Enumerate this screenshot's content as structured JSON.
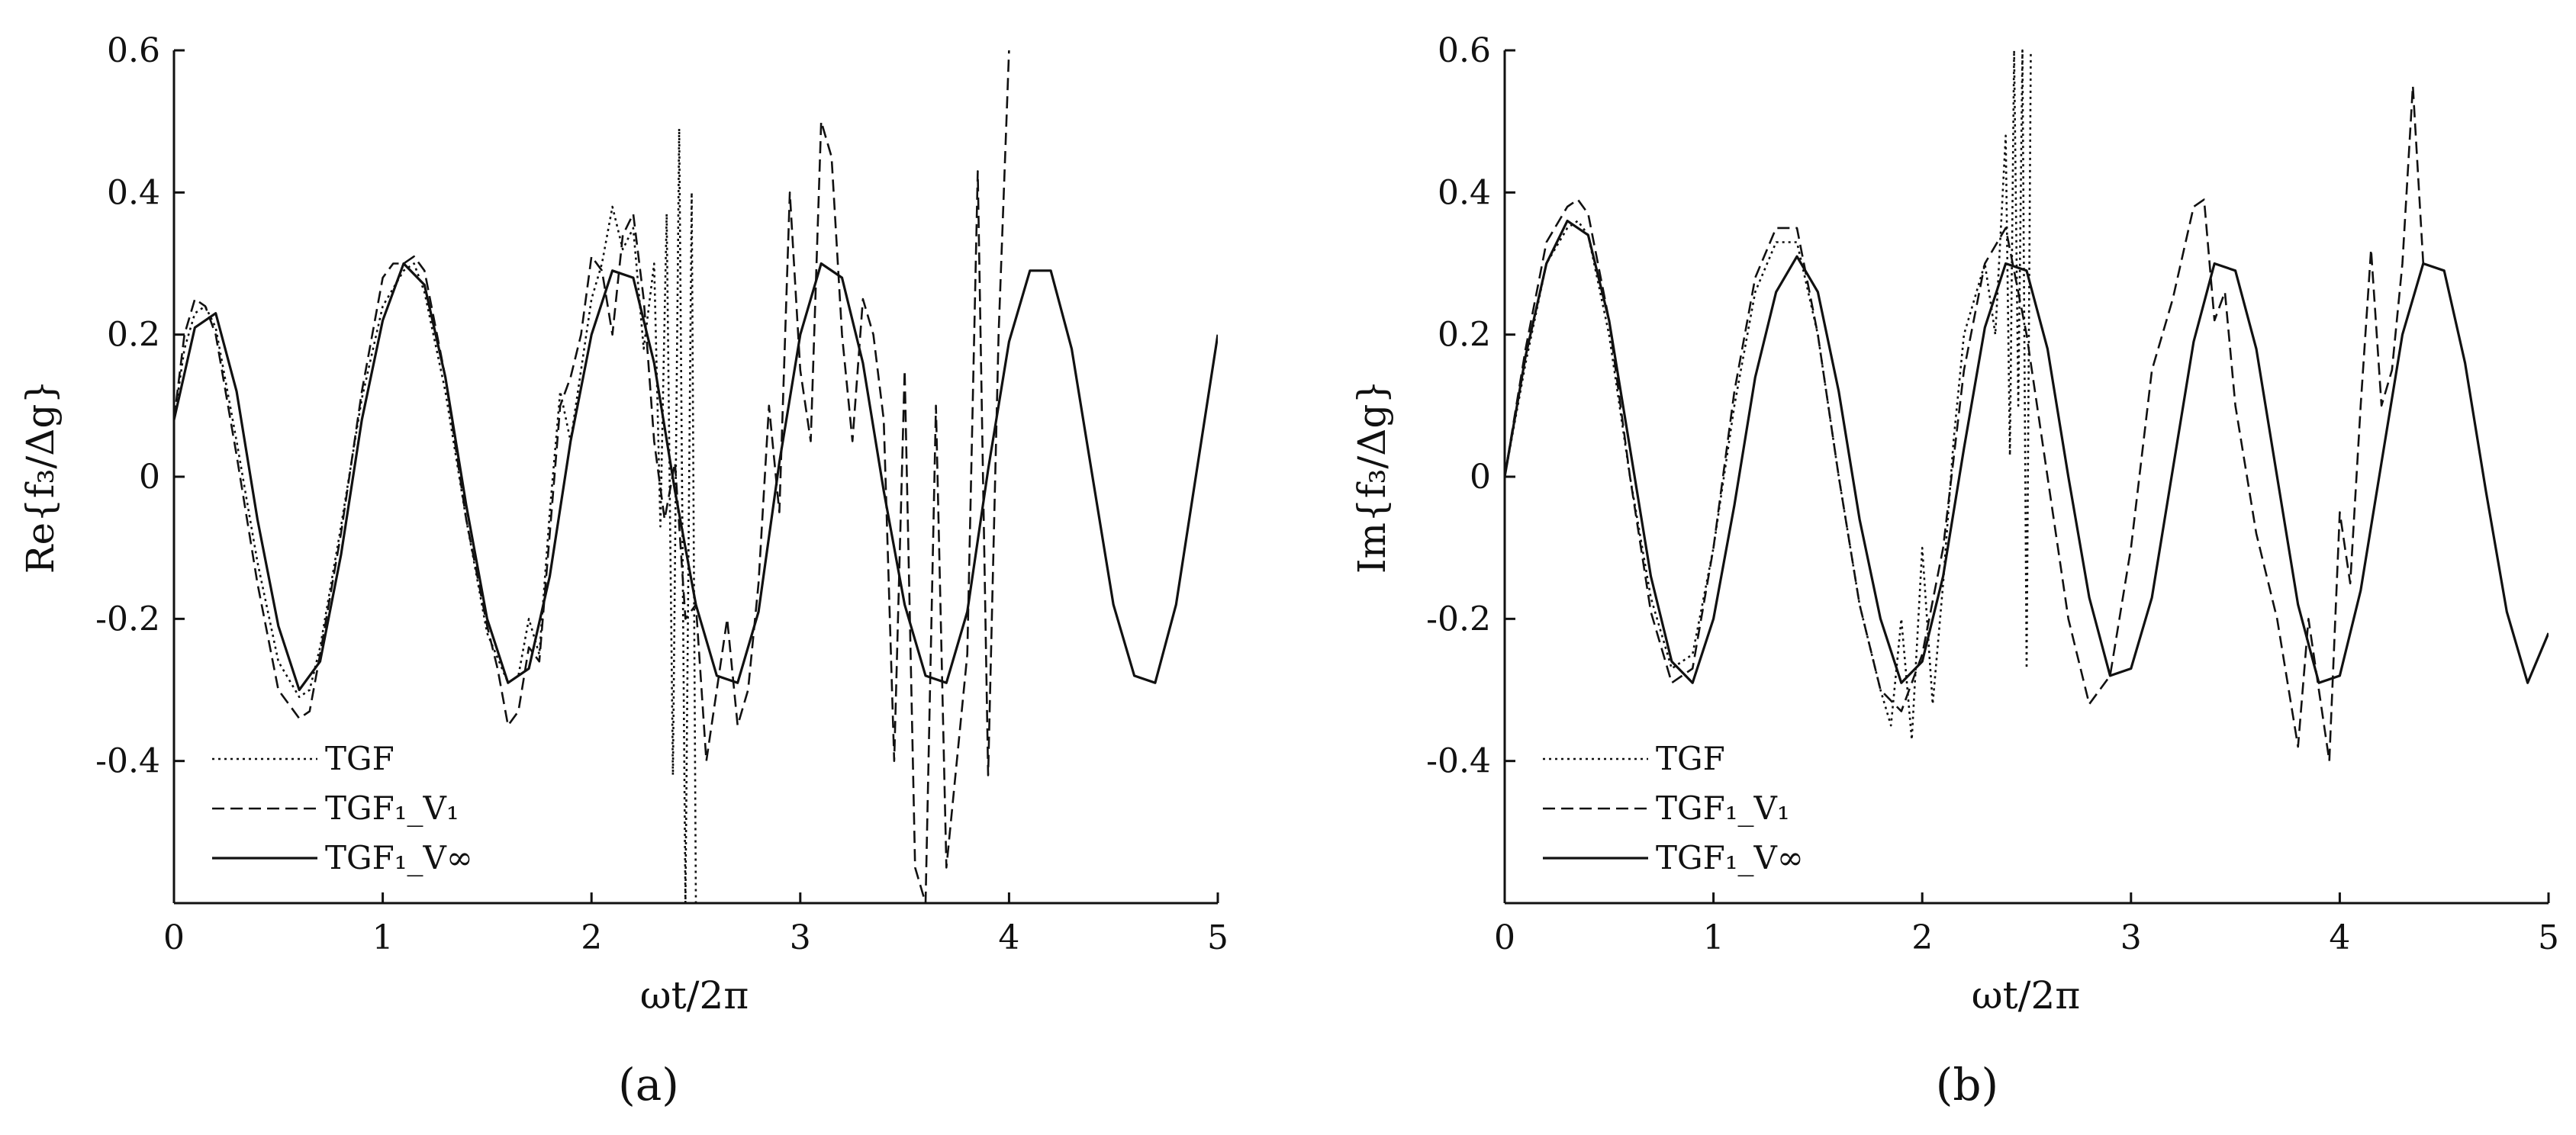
{
  "figure": {
    "panels": [
      {
        "label": "(a)",
        "id": "a"
      },
      {
        "label": "(b)",
        "id": "b"
      }
    ]
  },
  "chart_data": [
    {
      "type": "line",
      "panel": "(a)",
      "xlabel": "ωt/2π",
      "ylabel": "Re{f₃/Δg}",
      "xlim": [
        0,
        5
      ],
      "ylim": [
        -0.6,
        0.6
      ],
      "xticks": [
        0,
        1,
        2,
        3,
        4,
        5
      ],
      "yticks": [
        0.6,
        0.4,
        0.2,
        0,
        -0.2,
        -0.4
      ],
      "ytick_labels": [
        "0.6",
        "0.4",
        "0.2",
        "0",
        "-0.2",
        "-0.4"
      ],
      "grid": false,
      "legend_position": "bottom-left",
      "series": [
        {
          "name": "TGF",
          "style": "dotted",
          "x": [
            0,
            0.05,
            0.1,
            0.15,
            0.2,
            0.3,
            0.4,
            0.5,
            0.6,
            0.65,
            0.7,
            0.8,
            0.9,
            1.0,
            1.1,
            1.15,
            1.2,
            1.3,
            1.4,
            1.5,
            1.6,
            1.65,
            1.7,
            1.75,
            1.8,
            1.85,
            1.9,
            2.0,
            2.05,
            2.1,
            2.15,
            2.2,
            2.25,
            2.3,
            2.33,
            2.36,
            2.39,
            2.42,
            2.45,
            2.48,
            2.5,
            2.52
          ],
          "y": [
            0.08,
            0.18,
            0.23,
            0.24,
            0.21,
            0.05,
            -0.12,
            -0.26,
            -0.31,
            -0.3,
            -0.24,
            -0.07,
            0.11,
            0.24,
            0.29,
            0.3,
            0.26,
            0.12,
            -0.06,
            -0.22,
            -0.29,
            -0.28,
            -0.2,
            -0.25,
            -0.05,
            0.12,
            0.05,
            0.25,
            0.3,
            0.38,
            0.32,
            0.35,
            0.18,
            0.3,
            -0.07,
            0.37,
            -0.42,
            0.49,
            -0.6,
            0.4,
            -0.6,
            -0.6
          ]
        },
        {
          "name": "TGF₁_V₁",
          "style": "dashed",
          "x": [
            0,
            0.05,
            0.1,
            0.15,
            0.2,
            0.3,
            0.4,
            0.5,
            0.6,
            0.65,
            0.7,
            0.8,
            0.9,
            1.0,
            1.05,
            1.1,
            1.15,
            1.2,
            1.3,
            1.4,
            1.5,
            1.55,
            1.6,
            1.65,
            1.7,
            1.75,
            1.8,
            1.85,
            1.9,
            1.95,
            2.0,
            2.05,
            2.1,
            2.15,
            2.2,
            2.25,
            2.3,
            2.35,
            2.4,
            2.45,
            2.5,
            2.55,
            2.6,
            2.65,
            2.7,
            2.75,
            2.8,
            2.85,
            2.9,
            2.95,
            3.0,
            3.05,
            3.1,
            3.15,
            3.2,
            3.25,
            3.3,
            3.35,
            3.4,
            3.45,
            3.5,
            3.55,
            3.6,
            3.65,
            3.7,
            3.75,
            3.8,
            3.85,
            3.9,
            3.95,
            4.0
          ],
          "y": [
            0.08,
            0.2,
            0.25,
            0.24,
            0.2,
            0.03,
            -0.15,
            -0.3,
            -0.34,
            -0.33,
            -0.25,
            -0.08,
            0.12,
            0.28,
            0.3,
            0.3,
            0.31,
            0.29,
            0.14,
            -0.06,
            -0.21,
            -0.27,
            -0.35,
            -0.33,
            -0.24,
            -0.26,
            -0.08,
            0.1,
            0.14,
            0.2,
            0.31,
            0.29,
            0.2,
            0.34,
            0.37,
            0.25,
            0.05,
            -0.06,
            0.02,
            -0.2,
            -0.18,
            -0.4,
            -0.3,
            -0.2,
            -0.35,
            -0.3,
            -0.15,
            0.1,
            -0.05,
            0.4,
            0.15,
            0.05,
            0.5,
            0.45,
            0.2,
            0.05,
            0.25,
            0.2,
            0.08,
            -0.4,
            0.15,
            -0.55,
            -0.6,
            0.1,
            -0.55,
            -0.4,
            -0.25,
            0.43,
            -0.42,
            0.2,
            0.6
          ]
        },
        {
          "name": "TGF₁_V∞",
          "style": "solid",
          "x": [
            0,
            0.1,
            0.2,
            0.3,
            0.4,
            0.5,
            0.6,
            0.7,
            0.8,
            0.9,
            1.0,
            1.1,
            1.2,
            1.3,
            1.4,
            1.5,
            1.6,
            1.7,
            1.8,
            1.9,
            2.0,
            2.1,
            2.2,
            2.3,
            2.4,
            2.5,
            2.6,
            2.7,
            2.8,
            2.9,
            3.0,
            3.1,
            3.2,
            3.3,
            3.4,
            3.5,
            3.6,
            3.7,
            3.8,
            3.9,
            4.0,
            4.1,
            4.2,
            4.3,
            4.4,
            4.5,
            4.6,
            4.7,
            4.8,
            4.9,
            5.0
          ],
          "y": [
            0.08,
            0.21,
            0.23,
            0.12,
            -0.06,
            -0.21,
            -0.3,
            -0.26,
            -0.11,
            0.08,
            0.22,
            0.3,
            0.27,
            0.14,
            -0.04,
            -0.2,
            -0.29,
            -0.27,
            -0.14,
            0.05,
            0.2,
            0.29,
            0.28,
            0.16,
            -0.02,
            -0.18,
            -0.28,
            -0.29,
            -0.19,
            0.02,
            0.2,
            0.3,
            0.28,
            0.16,
            -0.02,
            -0.18,
            -0.28,
            -0.29,
            -0.19,
            0.01,
            0.19,
            0.29,
            0.29,
            0.18,
            0.0,
            -0.18,
            -0.28,
            -0.29,
            -0.18,
            0.01,
            0.2
          ]
        }
      ]
    },
    {
      "type": "line",
      "panel": "(b)",
      "xlabel": "ωt/2π",
      "ylabel": "Im{f₃/Δg}",
      "xlim": [
        0,
        5
      ],
      "ylim": [
        -0.6,
        0.6
      ],
      "xticks": [
        0,
        1,
        2,
        3,
        4,
        5
      ],
      "yticks": [
        0.6,
        0.4,
        0.2,
        0,
        -0.2,
        -0.4
      ],
      "ytick_labels": [
        "0.6",
        "0.4",
        "0.2",
        "0",
        "-0.2",
        "-0.4"
      ],
      "grid": false,
      "legend_position": "bottom-left",
      "series": [
        {
          "name": "TGF",
          "style": "dotted",
          "x": [
            0,
            0.1,
            0.2,
            0.3,
            0.35,
            0.4,
            0.5,
            0.6,
            0.7,
            0.8,
            0.9,
            1.0,
            1.1,
            1.2,
            1.3,
            1.4,
            1.5,
            1.6,
            1.7,
            1.8,
            1.85,
            1.9,
            1.95,
            2.0,
            2.05,
            2.1,
            2.15,
            2.2,
            2.25,
            2.3,
            2.35,
            2.4,
            2.42,
            2.44,
            2.46,
            2.48,
            2.5,
            2.52
          ],
          "y": [
            0.0,
            0.16,
            0.3,
            0.35,
            0.36,
            0.34,
            0.2,
            0.0,
            -0.17,
            -0.27,
            -0.25,
            -0.1,
            0.1,
            0.26,
            0.33,
            0.33,
            0.2,
            0.0,
            -0.18,
            -0.3,
            -0.35,
            -0.2,
            -0.37,
            -0.1,
            -0.32,
            -0.15,
            0.05,
            0.2,
            0.25,
            0.3,
            0.2,
            0.48,
            0.03,
            0.6,
            0.1,
            0.6,
            -0.27,
            0.6
          ]
        },
        {
          "name": "TGF₁_V₁",
          "style": "dashed",
          "x": [
            0,
            0.1,
            0.2,
            0.3,
            0.35,
            0.4,
            0.5,
            0.6,
            0.7,
            0.8,
            0.9,
            1.0,
            1.1,
            1.2,
            1.3,
            1.4,
            1.5,
            1.6,
            1.7,
            1.8,
            1.9,
            2.0,
            2.1,
            2.2,
            2.3,
            2.4,
            2.5,
            2.6,
            2.7,
            2.8,
            2.9,
            3.0,
            3.1,
            3.2,
            3.3,
            3.35,
            3.4,
            3.45,
            3.5,
            3.6,
            3.7,
            3.8,
            3.85,
            3.9,
            3.95,
            4.0,
            4.05,
            4.1,
            4.15,
            4.2,
            4.25,
            4.3,
            4.35,
            4.4
          ],
          "y": [
            0.0,
            0.18,
            0.33,
            0.38,
            0.39,
            0.37,
            0.22,
            0.0,
            -0.19,
            -0.29,
            -0.27,
            -0.1,
            0.12,
            0.28,
            0.35,
            0.35,
            0.2,
            0.0,
            -0.18,
            -0.3,
            -0.33,
            -0.25,
            -0.1,
            0.15,
            0.3,
            0.35,
            0.2,
            0.0,
            -0.2,
            -0.32,
            -0.28,
            -0.1,
            0.15,
            0.25,
            0.38,
            0.39,
            0.22,
            0.26,
            0.1,
            -0.08,
            -0.2,
            -0.38,
            -0.2,
            -0.3,
            -0.4,
            -0.05,
            -0.15,
            0.1,
            0.32,
            0.1,
            0.15,
            0.3,
            0.55,
            0.3
          ]
        },
        {
          "name": "TGF₁_V∞",
          "style": "solid",
          "x": [
            0,
            0.1,
            0.2,
            0.3,
            0.4,
            0.5,
            0.6,
            0.7,
            0.8,
            0.9,
            1.0,
            1.1,
            1.2,
            1.3,
            1.4,
            1.5,
            1.6,
            1.7,
            1.8,
            1.9,
            2.0,
            2.1,
            2.2,
            2.3,
            2.4,
            2.5,
            2.6,
            2.7,
            2.8,
            2.9,
            3.0,
            3.1,
            3.2,
            3.3,
            3.4,
            3.5,
            3.6,
            3.7,
            3.8,
            3.9,
            4.0,
            4.1,
            4.2,
            4.3,
            4.4,
            4.5,
            4.6,
            4.7,
            4.8,
            4.9,
            5.0
          ],
          "y": [
            0.0,
            0.17,
            0.3,
            0.36,
            0.34,
            0.22,
            0.04,
            -0.14,
            -0.26,
            -0.29,
            -0.2,
            -0.04,
            0.14,
            0.26,
            0.31,
            0.26,
            0.12,
            -0.06,
            -0.2,
            -0.29,
            -0.26,
            -0.14,
            0.04,
            0.21,
            0.3,
            0.29,
            0.18,
            0.0,
            -0.17,
            -0.28,
            -0.27,
            -0.17,
            0.01,
            0.19,
            0.3,
            0.29,
            0.18,
            0.0,
            -0.18,
            -0.29,
            -0.28,
            -0.16,
            0.02,
            0.2,
            0.3,
            0.29,
            0.16,
            -0.02,
            -0.19,
            -0.29,
            -0.22
          ]
        }
      ]
    }
  ]
}
